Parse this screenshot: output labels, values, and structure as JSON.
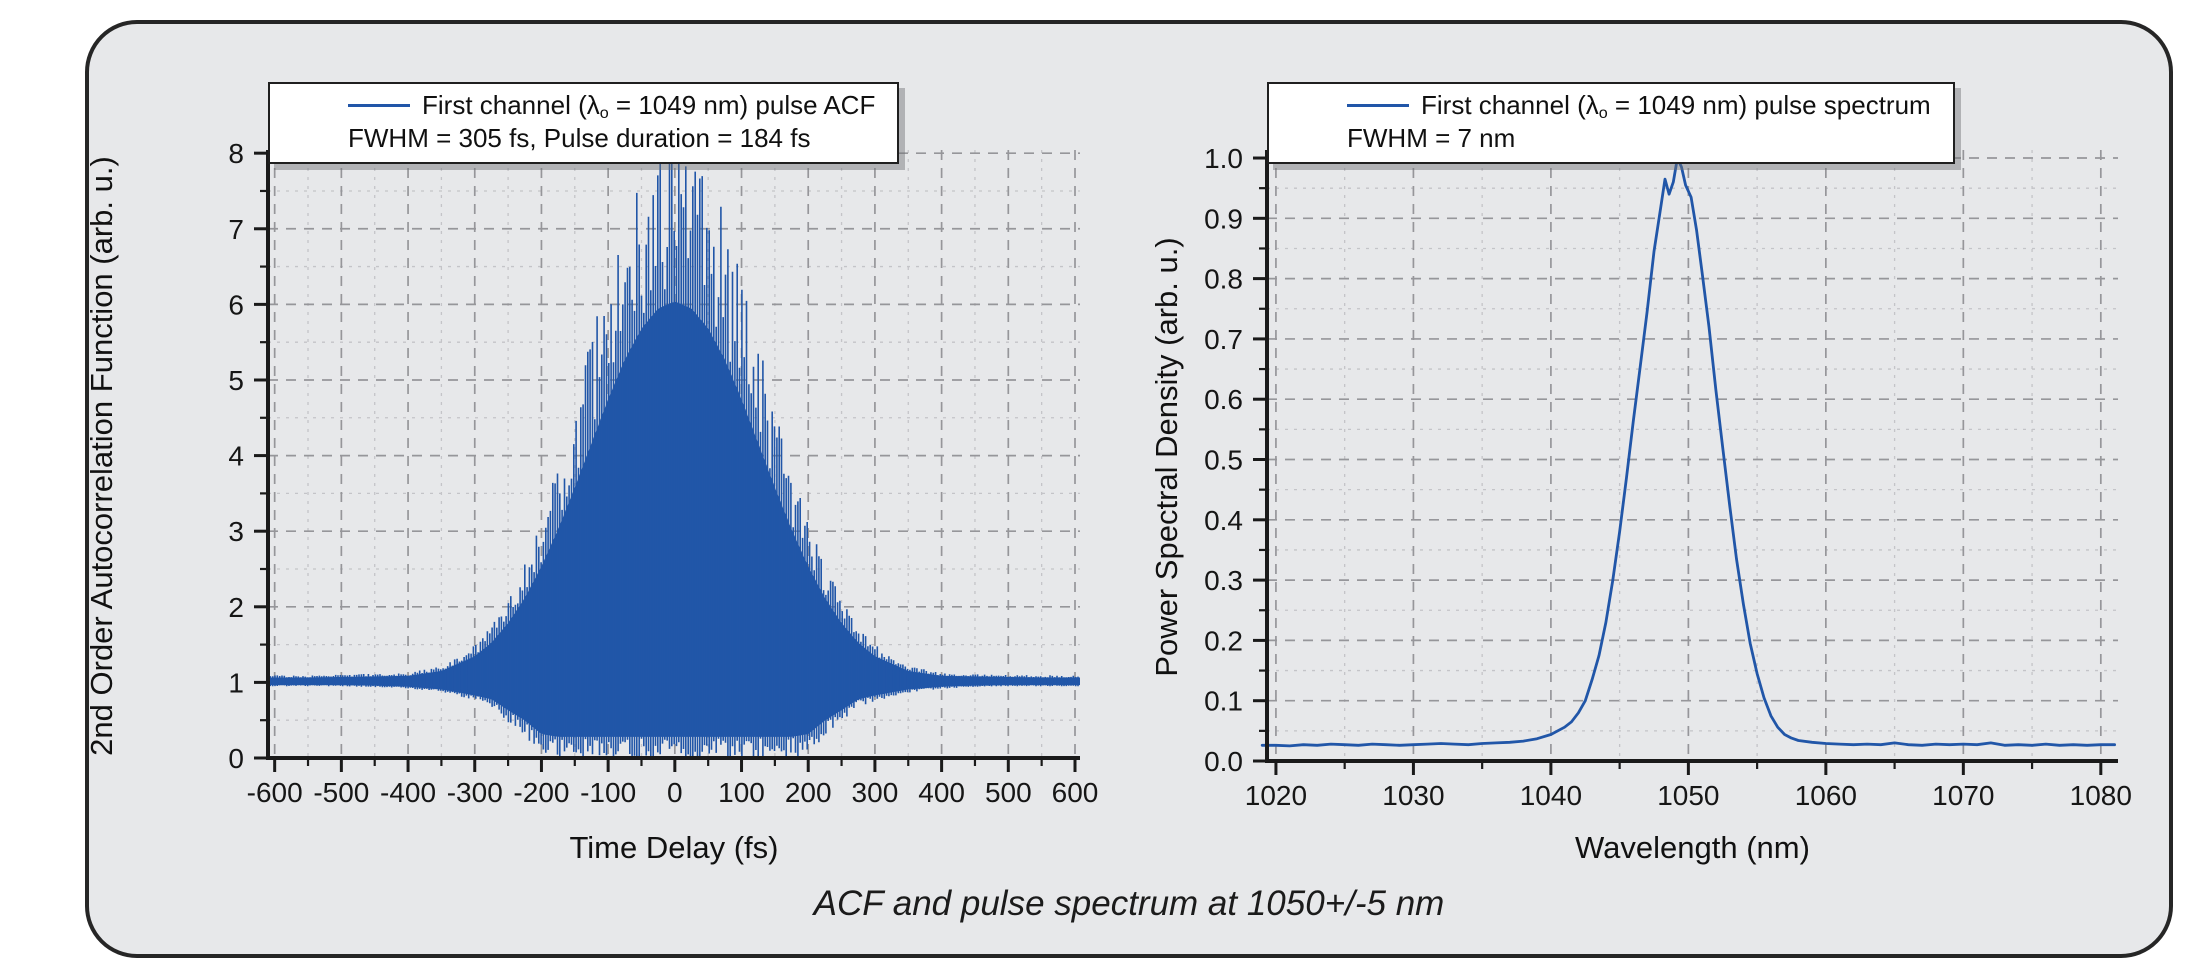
{
  "figure": {
    "caption": "ACF and pulse spectrum at 1050+/-5 nm",
    "background": "#e7e8ea",
    "border_color": "#262626"
  },
  "colors": {
    "curve": "#2156a8",
    "grid_major": "#96969a",
    "grid_minor": "#c4c4c8",
    "axis": "#1a1a1a",
    "legend_bg": "#ffffff"
  },
  "chart_data": [
    {
      "type": "line",
      "name": "acf",
      "legend": {
        "prefix": "First channel (λ",
        "sub": "o",
        "suffix": " = 1049 nm) pulse ACF"
      },
      "stats_line": "FWHM = 305 fs, Pulse duration = 184 fs",
      "xlabel": "Time Delay (fs)",
      "ylabel": "2nd Order Autocorrelation Function (arb. u.)",
      "xlim": [
        -600,
        600
      ],
      "ylim": [
        0,
        8
      ],
      "x_major_step": 100,
      "x_minor_step": 50,
      "y_major_step": 1,
      "y_minor_step": 0.5,
      "x_tick_decimals": 0,
      "y_tick_decimals": 0,
      "grid": "dashed",
      "fwhm_fs": 305,
      "pulse_duration_fs": 184,
      "center_wavelength_nm": 1049,
      "fringe_period_fs": 3.5,
      "envelope": {
        "t_fs": [
          -600,
          -550,
          -500,
          -450,
          -400,
          -350,
          -300,
          -275,
          -250,
          -225,
          -200,
          -175,
          -150,
          -125,
          -100,
          -75,
          -50,
          -25,
          0,
          25,
          50,
          75,
          100,
          125,
          150,
          175,
          200,
          225,
          250,
          275,
          300,
          350,
          400,
          450,
          500,
          550,
          600
        ],
        "upper": [
          1.09,
          1.09,
          1.1,
          1.11,
          1.12,
          1.21,
          1.48,
          1.73,
          2.09,
          2.55,
          3.13,
          3.81,
          4.58,
          5.39,
          6.2,
          6.93,
          7.5,
          7.87,
          8.0,
          7.87,
          7.5,
          6.93,
          6.2,
          5.39,
          4.58,
          3.81,
          3.13,
          2.55,
          2.09,
          1.73,
          1.48,
          1.21,
          1.12,
          1.11,
          1.1,
          1.09,
          1.09
        ],
        "lower": [
          0.95,
          0.95,
          0.95,
          0.94,
          0.92,
          0.87,
          0.76,
          0.69,
          0.49,
          0.3,
          0.05,
          0,
          0,
          0,
          0,
          0,
          0,
          0,
          0,
          0,
          0,
          0,
          0,
          0,
          0,
          0,
          0.05,
          0.3,
          0.49,
          0.69,
          0.76,
          0.87,
          0.92,
          0.94,
          0.95,
          0.95,
          0.95
        ]
      }
    },
    {
      "type": "line",
      "name": "spectrum",
      "legend": {
        "prefix": "First channel (λ",
        "sub": "o",
        "suffix": " = 1049 nm) pulse spectrum"
      },
      "stats_line": "FWHM = 7 nm",
      "xlabel": "Wavelength (nm)",
      "ylabel": "Power Spectral Density (arb. u.)",
      "xlim": [
        1020,
        1080
      ],
      "ylim": [
        0,
        1
      ],
      "x_major_step": 10,
      "x_minor_step": 5,
      "y_major_step": 0.1,
      "y_minor_step": 0.05,
      "x_tick_decimals": 0,
      "y_tick_decimals": 1,
      "grid": "dashed",
      "fwhm_nm": 7,
      "peak_nm": 1049,
      "points": {
        "x": [
          1019,
          1020,
          1021,
          1022,
          1023,
          1024,
          1025,
          1026,
          1027,
          1028,
          1029,
          1030,
          1031,
          1032,
          1033,
          1034,
          1035,
          1036,
          1037,
          1038,
          1039,
          1040,
          1041,
          1041.5,
          1042,
          1042.5,
          1043,
          1043.5,
          1044,
          1044.5,
          1045,
          1045.5,
          1046,
          1046.5,
          1047,
          1047.5,
          1048,
          1048.3,
          1048.6,
          1048.9,
          1049.2,
          1049.5,
          1049.8,
          1050.2,
          1050.6,
          1051,
          1051.5,
          1052,
          1052.5,
          1053,
          1053.5,
          1054,
          1054.5,
          1055,
          1055.5,
          1056,
          1056.5,
          1057,
          1057.5,
          1058,
          1059,
          1060,
          1061,
          1062,
          1063,
          1064,
          1065,
          1066,
          1067,
          1068,
          1069,
          1070,
          1071,
          1072,
          1073,
          1074,
          1075,
          1076,
          1077,
          1078,
          1079,
          1080,
          1081
        ],
        "y": [
          0.026,
          0.026,
          0.025,
          0.027,
          0.026,
          0.028,
          0.027,
          0.026,
          0.028,
          0.027,
          0.026,
          0.027,
          0.028,
          0.029,
          0.028,
          0.027,
          0.029,
          0.03,
          0.031,
          0.033,
          0.037,
          0.044,
          0.056,
          0.065,
          0.08,
          0.1,
          0.135,
          0.175,
          0.23,
          0.3,
          0.38,
          0.47,
          0.565,
          0.655,
          0.745,
          0.845,
          0.92,
          0.965,
          0.94,
          0.96,
          1.0,
          0.985,
          0.955,
          0.935,
          0.88,
          0.81,
          0.72,
          0.615,
          0.52,
          0.425,
          0.335,
          0.26,
          0.195,
          0.145,
          0.105,
          0.075,
          0.056,
          0.044,
          0.038,
          0.034,
          0.031,
          0.029,
          0.028,
          0.027,
          0.028,
          0.027,
          0.03,
          0.027,
          0.026,
          0.028,
          0.027,
          0.028,
          0.027,
          0.03,
          0.026,
          0.027,
          0.026,
          0.028,
          0.026,
          0.027,
          0.026,
          0.027,
          0.027
        ]
      }
    }
  ]
}
